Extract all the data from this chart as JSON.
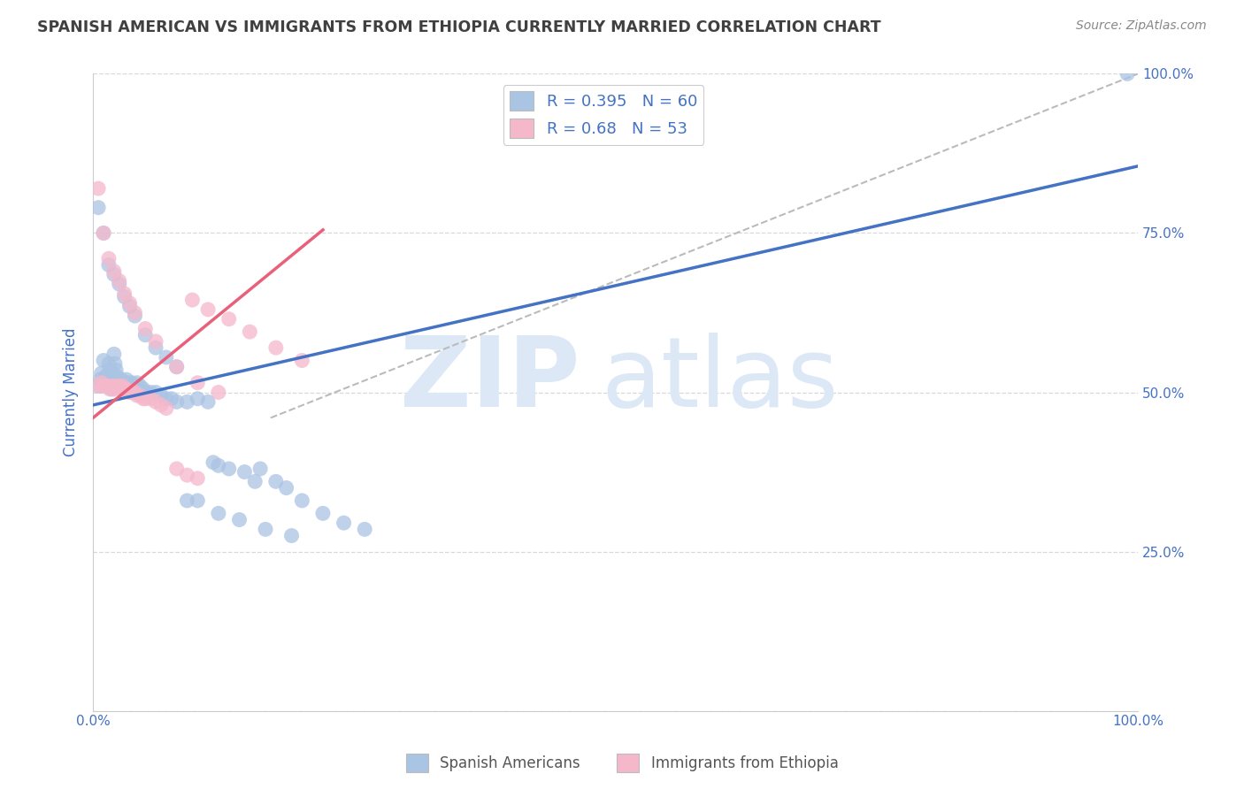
{
  "title": "SPANISH AMERICAN VS IMMIGRANTS FROM ETHIOPIA CURRENTLY MARRIED CORRELATION CHART",
  "source": "Source: ZipAtlas.com",
  "ylabel": "Currently Married",
  "series1_name": "Spanish Americans",
  "series1_color": "#aac4e4",
  "series1_edge_color": "#aac4e4",
  "series1_line_color": "#4472c4",
  "series1_R": 0.395,
  "series1_N": 60,
  "series2_name": "Immigrants from Ethiopia",
  "series2_color": "#f5b8cb",
  "series2_edge_color": "#f5b8cb",
  "series2_line_color": "#e8607a",
  "series2_R": 0.68,
  "series2_N": 53,
  "xlim": [
    0.0,
    1.0
  ],
  "ylim": [
    0.0,
    1.0
  ],
  "watermark_zip_color": "#dce8f5",
  "watermark_atlas_color": "#dce8f5",
  "background_color": "#ffffff",
  "grid_color": "#d8d8d8",
  "title_color": "#404040",
  "title_fontsize": 12.5,
  "tick_color": "#4472c4",
  "legend_text_color": "#4472c4",
  "source_color": "#888888",
  "series1_x": [
    0.005,
    0.007,
    0.008,
    0.01,
    0.01,
    0.012,
    0.013,
    0.014,
    0.015,
    0.015,
    0.016,
    0.017,
    0.018,
    0.018,
    0.019,
    0.02,
    0.021,
    0.022,
    0.023,
    0.024,
    0.025,
    0.026,
    0.027,
    0.028,
    0.03,
    0.031,
    0.032,
    0.033,
    0.035,
    0.036,
    0.037,
    0.038,
    0.04,
    0.042,
    0.043,
    0.045,
    0.048,
    0.05,
    0.055,
    0.06,
    0.065,
    0.07,
    0.075,
    0.08,
    0.09,
    0.1,
    0.11,
    0.115,
    0.12,
    0.13,
    0.145,
    0.155,
    0.16,
    0.175,
    0.185,
    0.2,
    0.22,
    0.24,
    0.26,
    0.99
  ],
  "series1_y": [
    0.51,
    0.52,
    0.53,
    0.55,
    0.515,
    0.525,
    0.51,
    0.52,
    0.545,
    0.51,
    0.535,
    0.525,
    0.515,
    0.505,
    0.53,
    0.56,
    0.545,
    0.535,
    0.525,
    0.52,
    0.515,
    0.51,
    0.52,
    0.515,
    0.51,
    0.505,
    0.52,
    0.515,
    0.505,
    0.51,
    0.515,
    0.505,
    0.51,
    0.515,
    0.505,
    0.51,
    0.505,
    0.5,
    0.5,
    0.5,
    0.495,
    0.49,
    0.49,
    0.485,
    0.485,
    0.49,
    0.485,
    0.39,
    0.385,
    0.38,
    0.375,
    0.36,
    0.38,
    0.36,
    0.35,
    0.33,
    0.31,
    0.295,
    0.285,
    1.0
  ],
  "series1_x_outliers": [
    0.005,
    0.01,
    0.015,
    0.02,
    0.025,
    0.03,
    0.035,
    0.04,
    0.05,
    0.06,
    0.07,
    0.08,
    0.09,
    0.1,
    0.12,
    0.14,
    0.165,
    0.19
  ],
  "series1_y_outliers": [
    0.79,
    0.75,
    0.7,
    0.685,
    0.67,
    0.65,
    0.635,
    0.62,
    0.59,
    0.57,
    0.555,
    0.54,
    0.33,
    0.33,
    0.31,
    0.3,
    0.285,
    0.275
  ],
  "series2_x": [
    0.005,
    0.008,
    0.01,
    0.012,
    0.015,
    0.016,
    0.018,
    0.02,
    0.022,
    0.025,
    0.027,
    0.028,
    0.03,
    0.032,
    0.035,
    0.037,
    0.04,
    0.042,
    0.045,
    0.048,
    0.05,
    0.055,
    0.06,
    0.065,
    0.07,
    0.08,
    0.09,
    0.1
  ],
  "series2_y": [
    0.51,
    0.515,
    0.51,
    0.51,
    0.51,
    0.505,
    0.51,
    0.505,
    0.51,
    0.51,
    0.505,
    0.51,
    0.505,
    0.505,
    0.5,
    0.5,
    0.5,
    0.495,
    0.495,
    0.49,
    0.49,
    0.49,
    0.485,
    0.48,
    0.475,
    0.38,
    0.37,
    0.365
  ],
  "series2_x_outliers": [
    0.005,
    0.01,
    0.015,
    0.02,
    0.025,
    0.03,
    0.035,
    0.04,
    0.05,
    0.06,
    0.08,
    0.1,
    0.12,
    0.095,
    0.11,
    0.13,
    0.15,
    0.175,
    0.2
  ],
  "series2_y_outliers": [
    0.82,
    0.75,
    0.71,
    0.69,
    0.675,
    0.655,
    0.64,
    0.625,
    0.6,
    0.58,
    0.54,
    0.515,
    0.5,
    0.645,
    0.63,
    0.615,
    0.595,
    0.57,
    0.55
  ],
  "blue_line_x": [
    0.0,
    1.0
  ],
  "blue_line_y": [
    0.48,
    0.855
  ],
  "pink_line_x": [
    0.0,
    0.22
  ],
  "pink_line_y": [
    0.46,
    0.755
  ],
  "diag_line_x": [
    0.17,
    1.0
  ],
  "diag_line_y": [
    0.46,
    1.0
  ]
}
